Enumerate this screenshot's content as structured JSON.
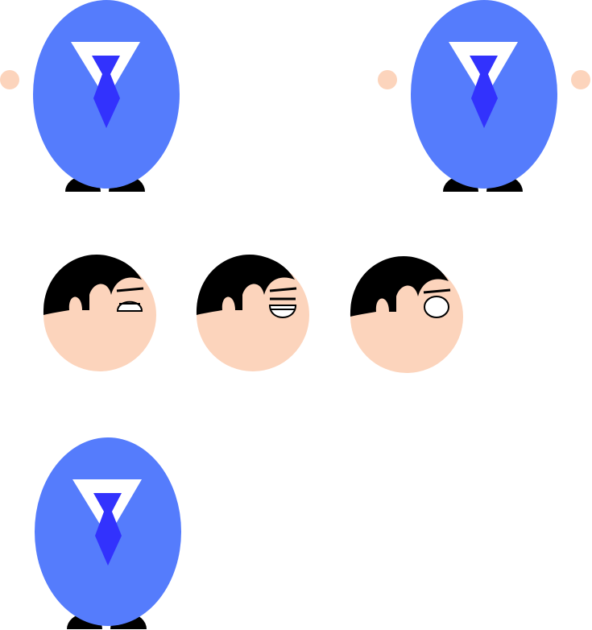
{
  "sprite_sheet": {
    "colors": {
      "background": "#ffffff",
      "suit": "#557cfc",
      "collar": "#ffffff",
      "tie": "#3232fd",
      "skin": "#fcd4bc",
      "hair": "#000000",
      "shoe": "#000000",
      "eye_outline": "#000000",
      "eye_white": "#ffffff"
    },
    "bodies": [
      {
        "name": "body-sprite-1",
        "hands": [
          "left"
        ]
      },
      {
        "name": "body-sprite-2",
        "hands": [
          "left",
          "right"
        ]
      },
      {
        "name": "body-sprite-3",
        "hands": []
      }
    ],
    "heads": [
      {
        "name": "head-sprite-1",
        "eye": "half-closed"
      },
      {
        "name": "head-sprite-2",
        "eye": "smiling"
      },
      {
        "name": "head-sprite-3",
        "eye": "open"
      }
    ]
  }
}
